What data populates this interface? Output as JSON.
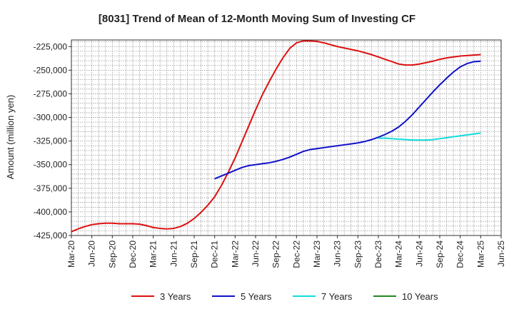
{
  "chart_data": {
    "type": "line",
    "title": "[8031]  Trend of Mean of 12-Month Moving Sum of Investing CF",
    "xlabel": "",
    "ylabel": "Amount (million yen)",
    "x_ticks": [
      "Mar-20",
      "Jun-20",
      "Sep-20",
      "Dec-20",
      "Mar-21",
      "Jun-21",
      "Sep-21",
      "Dec-21",
      "Mar-22",
      "Jun-22",
      "Sep-22",
      "Dec-22",
      "Mar-23",
      "Jun-23",
      "Sep-23",
      "Dec-23",
      "Mar-24",
      "Jun-24",
      "Sep-24",
      "Dec-24",
      "Mar-25",
      "Jun-25"
    ],
    "y_ticks": [
      "-225,000",
      "-250,000",
      "-275,000",
      "-300,000",
      "-325,000",
      "-350,000",
      "-375,000",
      "-400,000",
      "-425,000"
    ],
    "y_tick_values": [
      -225000,
      -250000,
      -275000,
      -300000,
      -325000,
      -350000,
      -375000,
      -400000,
      -425000
    ],
    "ylim": [
      -425000,
      -218000
    ],
    "grid": true,
    "legend_position": "bottom",
    "series": [
      {
        "name": "3 Years",
        "color": "#dd1111",
        "points": [
          [
            "Mar-20",
            -421000
          ],
          [
            "Apr-20",
            -418000
          ],
          [
            "May-20",
            -415500
          ],
          [
            "Jun-20",
            -413500
          ],
          [
            "Jul-20",
            -412500
          ],
          [
            "Aug-20",
            -412000
          ],
          [
            "Sep-20",
            -412000
          ],
          [
            "Oct-20",
            -412500
          ],
          [
            "Nov-20",
            -412500
          ],
          [
            "Dec-20",
            -412500
          ],
          [
            "Jan-21",
            -413000
          ],
          [
            "Feb-21",
            -414500
          ],
          [
            "Mar-21",
            -416500
          ],
          [
            "Apr-21",
            -417500
          ],
          [
            "May-21",
            -418000
          ],
          [
            "Jun-21",
            -417500
          ],
          [
            "Jul-21",
            -415500
          ],
          [
            "Aug-21",
            -412000
          ],
          [
            "Sep-21",
            -407000
          ],
          [
            "Oct-21",
            -400500
          ],
          [
            "Nov-21",
            -393000
          ],
          [
            "Dec-21",
            -384000
          ],
          [
            "Jan-22",
            -372000
          ],
          [
            "Feb-22",
            -358000
          ],
          [
            "Mar-22",
            -343000
          ],
          [
            "Apr-22",
            -326000
          ],
          [
            "May-22",
            -309000
          ],
          [
            "Jun-22",
            -292000
          ],
          [
            "Jul-22",
            -276000
          ],
          [
            "Aug-22",
            -262000
          ],
          [
            "Sep-22",
            -249000
          ],
          [
            "Oct-22",
            -237000
          ],
          [
            "Nov-22",
            -227000
          ],
          [
            "Dec-22",
            -221000
          ],
          [
            "Jan-23",
            -219000
          ],
          [
            "Feb-23",
            -219000
          ],
          [
            "Mar-23",
            -219500
          ],
          [
            "Apr-23",
            -221000
          ],
          [
            "May-23",
            -223000
          ],
          [
            "Jun-23",
            -225000
          ],
          [
            "Jul-23",
            -226500
          ],
          [
            "Aug-23",
            -228000
          ],
          [
            "Sep-23",
            -229500
          ],
          [
            "Oct-23",
            -231500
          ],
          [
            "Nov-23",
            -233500
          ],
          [
            "Dec-23",
            -236000
          ],
          [
            "Jan-24",
            -238500
          ],
          [
            "Feb-24",
            -241000
          ],
          [
            "Mar-24",
            -243500
          ],
          [
            "Apr-24",
            -244500
          ],
          [
            "May-24",
            -244500
          ],
          [
            "Jun-24",
            -243500
          ],
          [
            "Jul-24",
            -242000
          ],
          [
            "Aug-24",
            -240500
          ],
          [
            "Sep-24",
            -238500
          ],
          [
            "Oct-24",
            -237000
          ],
          [
            "Nov-24",
            -236000
          ],
          [
            "Dec-24",
            -235000
          ],
          [
            "Jan-25",
            -234500
          ],
          [
            "Feb-25",
            -234000
          ],
          [
            "Mar-25",
            -233500
          ]
        ]
      },
      {
        "name": "5 Years",
        "color": "#1111cc",
        "points": [
          [
            "Dec-21",
            -365000
          ],
          [
            "Jan-22",
            -362000
          ],
          [
            "Feb-22",
            -359000
          ],
          [
            "Mar-22",
            -356000
          ],
          [
            "Apr-22",
            -353000
          ],
          [
            "May-22",
            -351000
          ],
          [
            "Jun-22",
            -350000
          ],
          [
            "Jul-22",
            -349000
          ],
          [
            "Aug-22",
            -348000
          ],
          [
            "Sep-22",
            -346500
          ],
          [
            "Oct-22",
            -344500
          ],
          [
            "Nov-22",
            -342000
          ],
          [
            "Dec-22",
            -339000
          ],
          [
            "Jan-23",
            -336000
          ],
          [
            "Feb-23",
            -334000
          ],
          [
            "Mar-23",
            -333000
          ],
          [
            "Apr-23",
            -332000
          ],
          [
            "May-23",
            -331000
          ],
          [
            "Jun-23",
            -330000
          ],
          [
            "Jul-23",
            -329000
          ],
          [
            "Aug-23",
            -328000
          ],
          [
            "Sep-23",
            -327000
          ],
          [
            "Oct-23",
            -325500
          ],
          [
            "Nov-23",
            -323500
          ],
          [
            "Dec-23",
            -321000
          ],
          [
            "Jan-24",
            -318000
          ],
          [
            "Feb-24",
            -314500
          ],
          [
            "Mar-24",
            -310000
          ],
          [
            "Apr-24",
            -304000
          ],
          [
            "May-24",
            -297000
          ],
          [
            "Jun-24",
            -289000
          ],
          [
            "Jul-24",
            -281000
          ],
          [
            "Aug-24",
            -273000
          ],
          [
            "Sep-24",
            -265500
          ],
          [
            "Oct-24",
            -258500
          ],
          [
            "Nov-24",
            -252000
          ],
          [
            "Dec-24",
            -246500
          ],
          [
            "Jan-25",
            -243000
          ],
          [
            "Feb-25",
            -241000
          ],
          [
            "Mar-25",
            -240500
          ]
        ]
      },
      {
        "name": "7 Years",
        "color": "#11dddd",
        "points": [
          [
            "Dec-23",
            -322000
          ],
          [
            "Jan-24",
            -322000
          ],
          [
            "Feb-24",
            -322500
          ],
          [
            "Mar-24",
            -323000
          ],
          [
            "Apr-24",
            -323500
          ],
          [
            "May-24",
            -324000
          ],
          [
            "Jun-24",
            -324000
          ],
          [
            "Jul-24",
            -324000
          ],
          [
            "Aug-24",
            -323500
          ],
          [
            "Sep-24",
            -322500
          ],
          [
            "Oct-24",
            -321500
          ],
          [
            "Nov-24",
            -320500
          ],
          [
            "Dec-24",
            -319500
          ],
          [
            "Jan-25",
            -318500
          ],
          [
            "Feb-25",
            -317500
          ],
          [
            "Mar-25",
            -316500
          ]
        ]
      },
      {
        "name": "10 Years",
        "color": "#228822",
        "points": []
      }
    ]
  }
}
